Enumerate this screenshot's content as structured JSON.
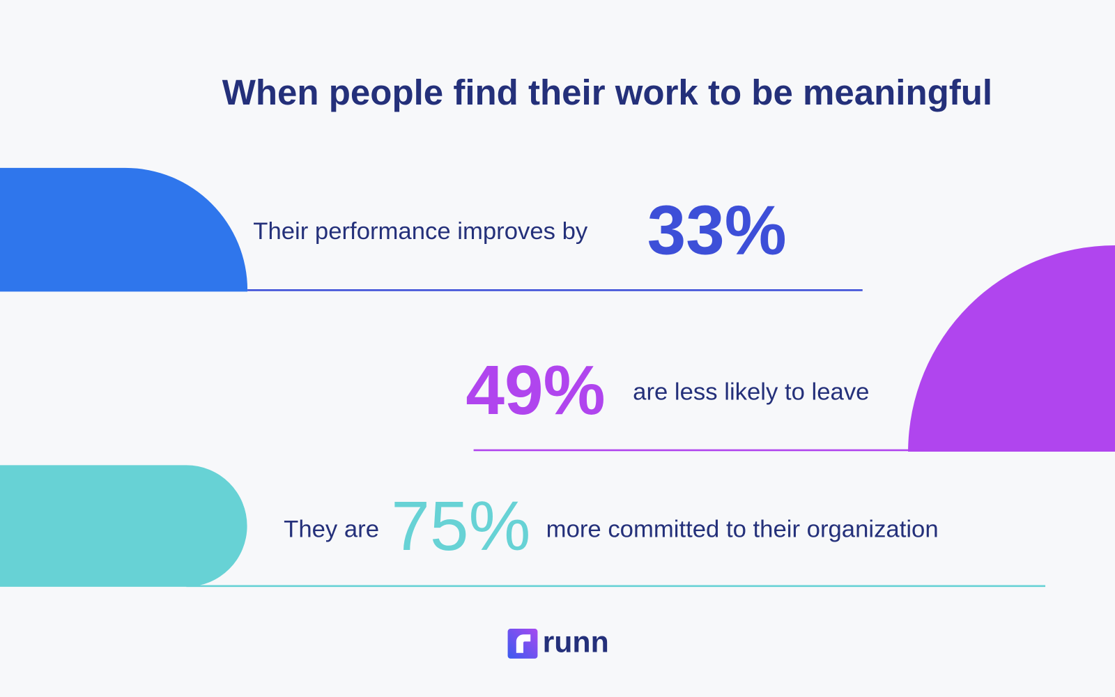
{
  "title": "When people find their work to be meaningful",
  "stats": [
    {
      "before": "Their performance improves by",
      "figure": "33%"
    },
    {
      "figure": "49%",
      "after": "are less likely to leave"
    },
    {
      "before": "They are",
      "figure": "75%",
      "after": "more committed to their organization"
    }
  ],
  "logo": {
    "text": "runn"
  }
}
